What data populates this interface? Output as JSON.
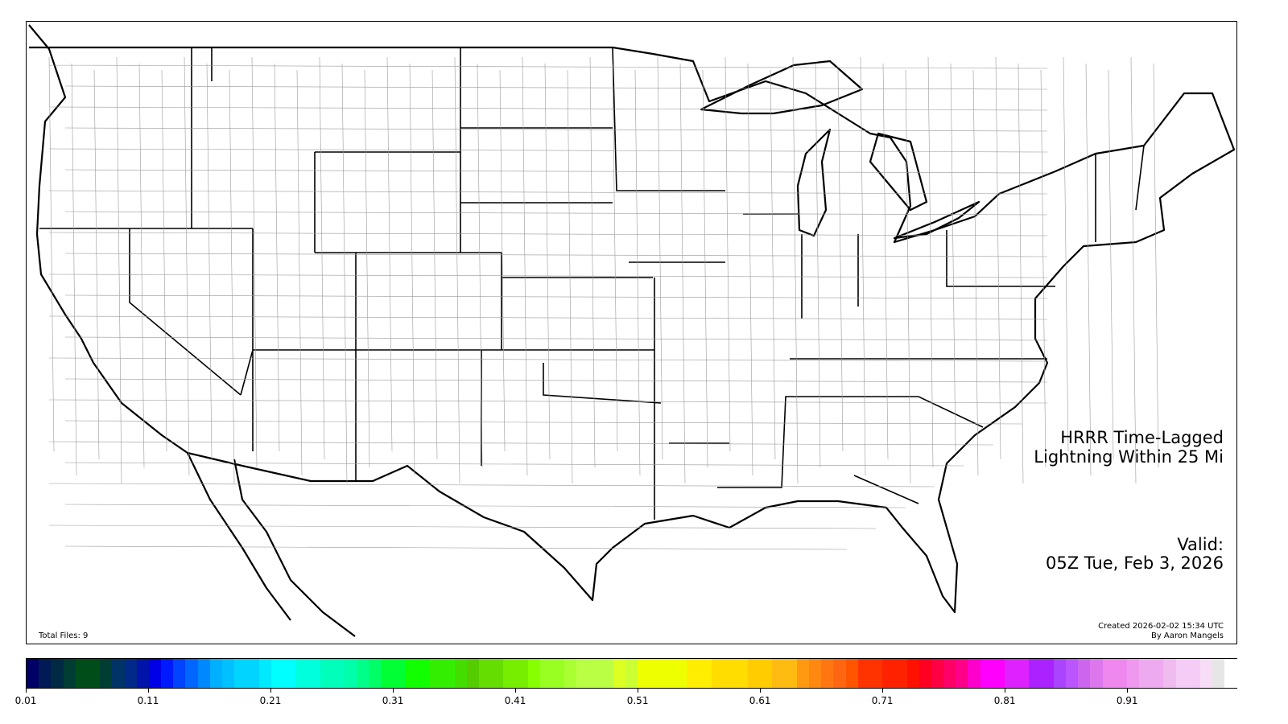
{
  "map": {
    "title_line1": "HRRR Time-Lagged",
    "title_line2": "Lightning Within 25 Mi",
    "valid_label": "Valid:",
    "valid_time": "05Z Tue, Feb 3, 2026",
    "total_files": "Total Files: 9",
    "created": "Created 2026-02-02 15:34 UTC",
    "author": "By Aaron Mangels"
  },
  "colorbar": {
    "min": 0.01,
    "max": 1.0,
    "ticks": [
      "0.01",
      "0.11",
      "0.21",
      "0.31",
      "0.41",
      "0.51",
      "0.61",
      "0.71",
      "0.81",
      "0.91"
    ],
    "colors": [
      "#000066",
      "#001a55",
      "#002a44",
      "#003d33",
      "#004d1a",
      "#004d1a",
      "#003d33",
      "#003366",
      "#00298a",
      "#0014aa",
      "#0000e6",
      "#001aff",
      "#0044ff",
      "#0066ff",
      "#0088ff",
      "#00b0ff",
      "#00c0ff",
      "#00d4ff",
      "#00d4ff",
      "#00eaff",
      "#00ffff",
      "#00ffff",
      "#00ffdd",
      "#00ffdd",
      "#00ffbb",
      "#00ffbb",
      "#00ffaa",
      "#00ff88",
      "#00ff66",
      "#00ff33",
      "#00ff33",
      "#11ff00",
      "#11ff00",
      "#33ee00",
      "#33ee00",
      "#44dd00",
      "#55cc00",
      "#66dd00",
      "#66dd00",
      "#77ee00",
      "#77ee00",
      "#88ff00",
      "#99ff22",
      "#99ff22",
      "#aaff33",
      "#bbff44",
      "#bbff44",
      "#bbff44",
      "#ddff22",
      "#ccff33",
      "#eeff00",
      "#eeff00",
      "#eeff00",
      "#eeff00",
      "#ffee00",
      "#ffee00",
      "#ffdd00",
      "#ffdd00",
      "#ffdd00",
      "#ffcc00",
      "#ffcc00",
      "#ffbb11",
      "#ffbb11",
      "#ff9911",
      "#ff8811",
      "#ff7711",
      "#ff6611",
      "#ff5500",
      "#ff3300",
      "#ff3300",
      "#ff2200",
      "#ff2200",
      "#ff1100",
      "#ff0022",
      "#ff0044",
      "#ff0066",
      "#ff0088",
      "#ff00cc",
      "#ff00ff",
      "#ff00ff",
      "#dd22ff",
      "#dd22ff",
      "#aa22ff",
      "#aa22ff",
      "#aa44ff",
      "#bb55ff",
      "#cc66ee",
      "#dd77ee",
      "#ee88ee",
      "#ee88ee",
      "#ee99ee",
      "#eeaaee",
      "#eeaaee",
      "#f0bbee",
      "#f5ccf5",
      "#f5ccf5",
      "#f8ddf8",
      "#e6e6e6",
      "#ffffff"
    ]
  }
}
